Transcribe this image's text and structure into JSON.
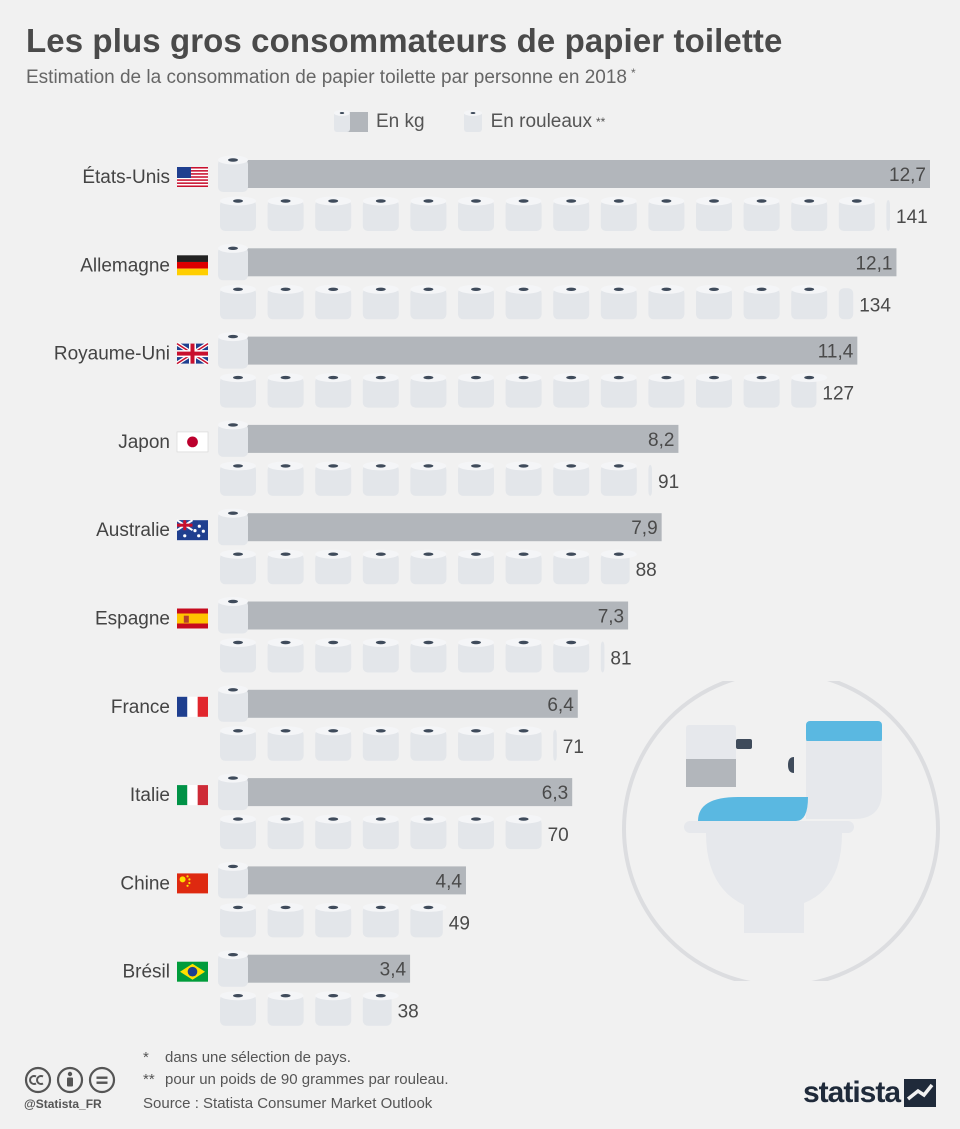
{
  "title": "Les plus gros consommateurs de papier toilette",
  "subtitle": "Estimation de la consommation de papier toilette par personne en 2018",
  "subtitle_mark": "*",
  "legend": {
    "kg_label": "En kg",
    "rolls_label": "En rouleaux",
    "rolls_mark": "**"
  },
  "colors": {
    "background": "#f1f1f1",
    "bar": "#b2b6bb",
    "roll_body": "#e3e6ea",
    "roll_top": "#f4f5f7",
    "roll_core": "#3f4b5b",
    "seat_blue": "#5ab8e1",
    "brand_dark": "#1f2a3a"
  },
  "chart_data": {
    "type": "bar",
    "categories": [
      "États-Unis",
      "Allemagne",
      "Royaume-Uni",
      "Japon",
      "Australie",
      "Espagne",
      "France",
      "Italie",
      "Chine",
      "Brésil"
    ],
    "flags": [
      "us-flag-icon",
      "germany-flag-icon",
      "uk-flag-icon",
      "japan-flag-icon",
      "australia-flag-icon",
      "spain-flag-icon",
      "france-flag-icon",
      "italy-flag-icon",
      "china-flag-icon",
      "brazil-flag-icon"
    ],
    "series": [
      {
        "name": "En kg",
        "values": [
          12.7,
          12.1,
          11.4,
          8.2,
          7.9,
          7.3,
          6.4,
          6.3,
          4.4,
          3.4
        ],
        "labels": [
          "12,7",
          "12,1",
          "11,4",
          "8,2",
          "7,9",
          "7,3",
          "6,4",
          "6,3",
          "4,4",
          "3,4"
        ]
      },
      {
        "name": "En rouleaux",
        "values": [
          141,
          134,
          127,
          91,
          88,
          81,
          71,
          70,
          49,
          38
        ],
        "labels": [
          "141",
          "134",
          "127",
          "91",
          "88",
          "81",
          "71",
          "70",
          "49",
          "38"
        ]
      }
    ],
    "rolls_per_icon": 10
  },
  "footnotes": [
    {
      "mark": "*",
      "text": "dans une sélection de pays."
    },
    {
      "mark": "**",
      "text": "pour un poids de 90 grammes par rouleau."
    }
  ],
  "source": "Source : Statista Consumer Market Outlook",
  "credit": "@Statista_FR",
  "brand": "statista",
  "icons": [
    "toilet-paper-roll-icon",
    "toilet-illustration",
    "cc-icon",
    "attribution-icon",
    "no-derivatives-icon",
    "statista-logo-icon"
  ]
}
